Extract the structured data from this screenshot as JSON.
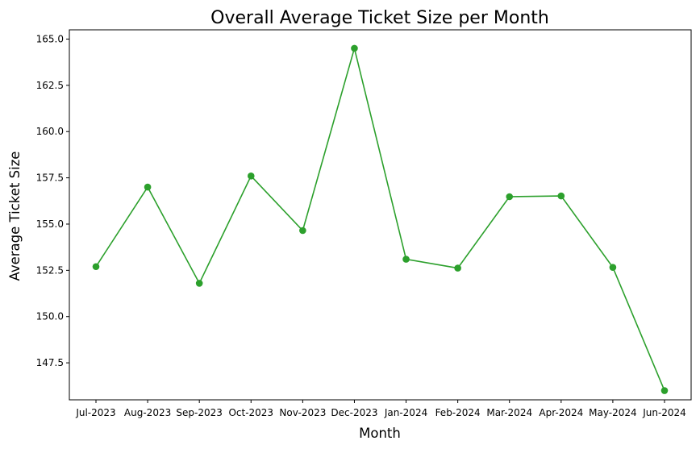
{
  "chart_data": {
    "type": "line",
    "title": "Overall Average Ticket Size per Month",
    "xlabel": "Month",
    "ylabel": "Average Ticket Size",
    "categories": [
      "Jul-2023",
      "Aug-2023",
      "Sep-2023",
      "Oct-2023",
      "Nov-2023",
      "Dec-2023",
      "Jan-2024",
      "Feb-2024",
      "Mar-2024",
      "Apr-2024",
      "May-2024",
      "Jun-2024"
    ],
    "series": [
      {
        "values": [
          152.7,
          157.0,
          151.8,
          157.6,
          154.65,
          164.5,
          153.1,
          152.62,
          156.48,
          156.52,
          152.66,
          146.0
        ],
        "color": "#2ca02c",
        "marker": "circle"
      }
    ],
    "ylim": [
      145.5,
      165.5
    ],
    "yticks": [
      147.5,
      150.0,
      152.5,
      155.0,
      157.5,
      160.0,
      162.5,
      165.0
    ],
    "ytick_labels": [
      "147.5",
      "150.0",
      "152.5",
      "155.0",
      "157.5",
      "160.0",
      "162.5",
      "165.0"
    ],
    "grid": false,
    "legend": "none"
  }
}
